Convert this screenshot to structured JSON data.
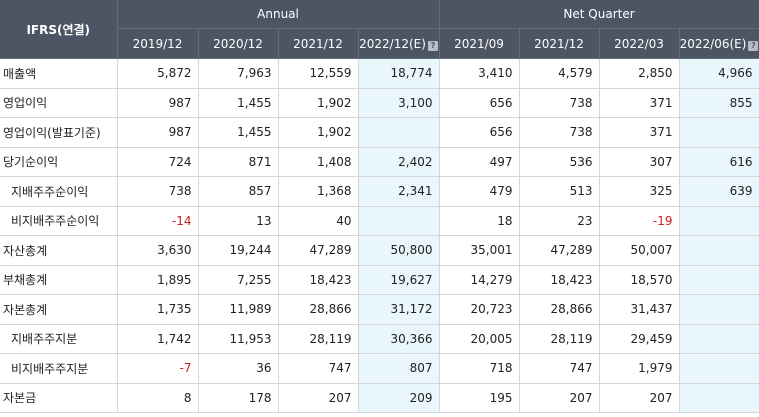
{
  "header": {
    "corner": "IFRS(연결)",
    "annual_label": "Annual",
    "quarter_label": "Net Quarter",
    "annual_periods": [
      "2019/12",
      "2020/12",
      "2021/12",
      "2022/12(E)"
    ],
    "quarter_periods": [
      "2021/09",
      "2021/12",
      "2022/03",
      "2022/06(E)"
    ],
    "help_icon": "?"
  },
  "rows": [
    {
      "label": "매출액",
      "values": [
        "5,872",
        "7,963",
        "12,559",
        "18,774",
        "3,410",
        "4,579",
        "2,850",
        "4,966"
      ]
    },
    {
      "label": "영업이익",
      "values": [
        "987",
        "1,455",
        "1,902",
        "3,100",
        "656",
        "738",
        "371",
        "855"
      ]
    },
    {
      "label": "영업이익(발표기준)",
      "values": [
        "987",
        "1,455",
        "1,902",
        "",
        "656",
        "738",
        "371",
        ""
      ]
    },
    {
      "label": "당기순이익",
      "values": [
        "724",
        "871",
        "1,408",
        "2,402",
        "497",
        "536",
        "307",
        "616"
      ]
    },
    {
      "label": "지배주주순이익",
      "values": [
        "738",
        "857",
        "1,368",
        "2,341",
        "479",
        "513",
        "325",
        "639"
      ]
    },
    {
      "label": "비지배주주순이익",
      "values": [
        "-14",
        "13",
        "40",
        "",
        "18",
        "23",
        "-19",
        ""
      ]
    },
    {
      "label": "자산총계",
      "values": [
        "3,630",
        "19,244",
        "47,289",
        "50,800",
        "35,001",
        "47,289",
        "50,007",
        ""
      ]
    },
    {
      "label": "부채총계",
      "values": [
        "1,895",
        "7,255",
        "18,423",
        "19,627",
        "14,279",
        "18,423",
        "18,570",
        ""
      ]
    },
    {
      "label": "자본총계",
      "values": [
        "1,735",
        "11,989",
        "28,866",
        "31,172",
        "20,723",
        "28,866",
        "31,437",
        ""
      ]
    },
    {
      "label": "지배주주지분",
      "values": [
        "1,742",
        "11,953",
        "28,119",
        "30,366",
        "20,005",
        "28,119",
        "29,459",
        ""
      ]
    },
    {
      "label": "비지배주주지분",
      "values": [
        "-7",
        "36",
        "747",
        "807",
        "718",
        "747",
        "1,979",
        ""
      ]
    },
    {
      "label": "자본금",
      "values": [
        "8",
        "178",
        "207",
        "209",
        "195",
        "207",
        "207",
        ""
      ]
    }
  ],
  "colors": {
    "header_bg": "#4b5564",
    "estimate_bg": "#e9f6fc",
    "negative_text": "#cc1f1f"
  }
}
